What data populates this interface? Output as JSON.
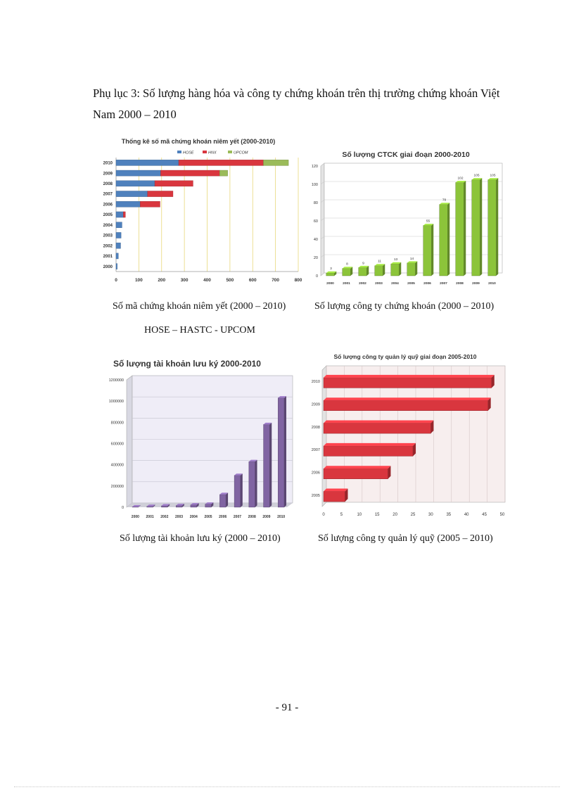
{
  "document": {
    "heading": "Phụ lục 3: Số lượng hàng hóa và công ty chứng khoán trên thị trường chứng khoán Việt Nam 2000 – 2010",
    "page_number": "- 91 -"
  },
  "captions": {
    "c1": "Số mã chứng khoán niêm yết (2000 – 2010)",
    "c1_sub": "HOSE – HASTC - UPCOM",
    "c2": "Số lượng công ty chứng khoán (2000 – 2010)",
    "c3": "Số lượng tài khoản lưu ký (2000 – 2010)",
    "c4": "Số lượng công ty quản lý quỹ (2005 – 2010)"
  },
  "chart_data": [
    {
      "type": "bar",
      "orientation": "horizontal",
      "stacked": true,
      "title": "Thống kê số mã chứng khoán niêm yết (2000-2010)",
      "categories": [
        "2010",
        "2009",
        "2008",
        "2007",
        "2006",
        "2005",
        "2004",
        "2003",
        "2002",
        "2001",
        "2000"
      ],
      "series": [
        {
          "name": "HOSE",
          "color": "#4f81bd",
          "values": [
            275,
            196,
            170,
            138,
            106,
            32,
            26,
            22,
            20,
            10,
            5
          ]
        },
        {
          "name": "HNX",
          "color": "#d9363e",
          "values": [
            372,
            259,
            168,
            112,
            87,
            9,
            0,
            0,
            0,
            0,
            0
          ]
        },
        {
          "name": "UPCOM",
          "color": "#9bbb59",
          "values": [
            110,
            35,
            0,
            0,
            0,
            0,
            0,
            0,
            0,
            0,
            0
          ]
        }
      ],
      "xlim": [
        0,
        800
      ],
      "xticks": [
        "0",
        "100",
        "200",
        "300",
        "400",
        "500",
        "600",
        "700",
        "800"
      ],
      "legend": "top",
      "grid": true
    },
    {
      "type": "bar",
      "title": "Số lượng CTCK giai đoạn 2000-2010",
      "categories": [
        "2000",
        "2001",
        "2002",
        "2003",
        "2004",
        "2005",
        "2006",
        "2007",
        "2008",
        "2009",
        "2010"
      ],
      "values": [
        3,
        8,
        9,
        11,
        13,
        14,
        55,
        78,
        102,
        105,
        105
      ],
      "labels": [
        "3",
        "8",
        "9",
        "11",
        "13",
        "14",
        "55",
        "78",
        "102",
        "105",
        "105"
      ],
      "ylim": [
        0,
        120
      ],
      "yticks": [
        "0",
        "20",
        "40",
        "60",
        "80",
        "100",
        "120"
      ],
      "color": "#8cc43a",
      "grid": true
    },
    {
      "type": "bar",
      "title": "Số lượng tài khoản lưu ký 2000-2010",
      "categories": [
        "2000",
        "2001",
        "2002",
        "2003",
        "2004",
        "2005",
        "2006",
        "2007",
        "2008",
        "2009",
        "2010"
      ],
      "values": [
        3000,
        8000,
        13000,
        16000,
        22000,
        29000,
        120000,
        300000,
        430000,
        780000,
        1030000
      ],
      "ylim": [
        0,
        1200000
      ],
      "yticks": [
        "0",
        "200000",
        "400000",
        "600000",
        "800000",
        "1000000",
        "1200000"
      ],
      "color": "#8064a2",
      "grid": true
    },
    {
      "type": "bar",
      "orientation": "horizontal",
      "title": "Số lượng công ty quản lý quỹ giai đoạn 2005-2010",
      "categories": [
        "2010",
        "2009",
        "2008",
        "2007",
        "2006",
        "2005"
      ],
      "values": [
        47,
        46,
        30,
        25,
        18,
        6
      ],
      "xlim": [
        0,
        50
      ],
      "xticks": [
        "0",
        "5",
        "10",
        "15",
        "20",
        "25",
        "30",
        "35",
        "40",
        "45",
        "50"
      ],
      "color": "#d9363e",
      "grid": true
    }
  ]
}
